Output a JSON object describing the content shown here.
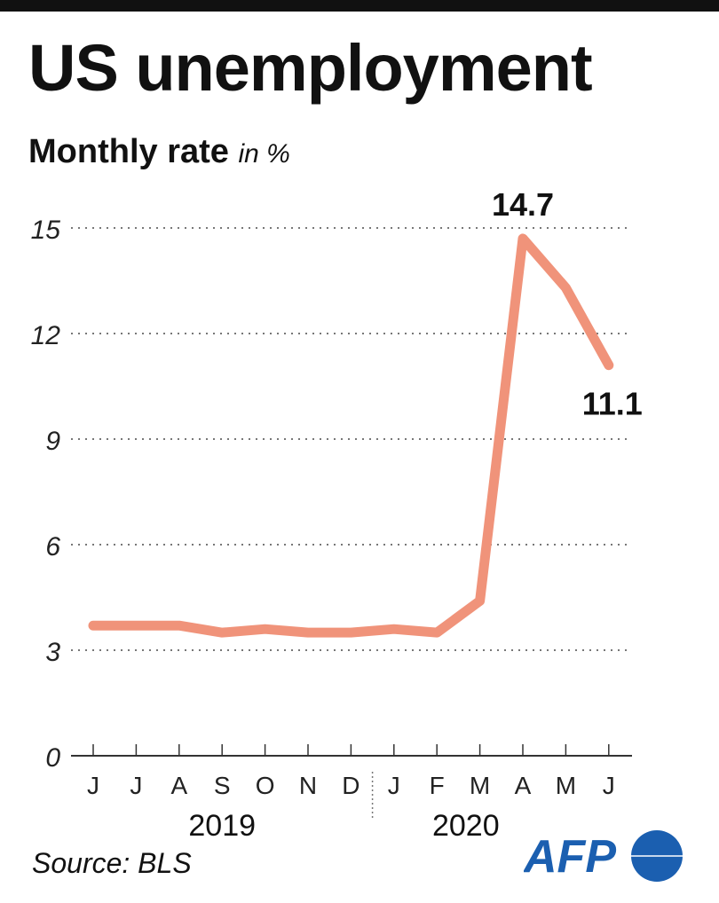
{
  "title": "US unemployment",
  "subtitle": "Monthly rate",
  "subtitle_unit": "in %",
  "source": "Source: BLS",
  "logo": "AFP",
  "colors": {
    "line": "#f0937a",
    "logo": "#1b5fb0"
  },
  "chart_data": {
    "type": "line",
    "title": "US unemployment",
    "ylabel": "Monthly rate in %",
    "xlabel": "",
    "categories": [
      "J",
      "J",
      "A",
      "S",
      "O",
      "N",
      "D",
      "J",
      "F",
      "M",
      "A",
      "M",
      "J"
    ],
    "years": [
      {
        "label": "2019",
        "from": 0,
        "to": 6
      },
      {
        "label": "2020",
        "from": 7,
        "to": 12
      }
    ],
    "series": [
      {
        "name": "Unemployment rate",
        "values": [
          3.7,
          3.7,
          3.7,
          3.5,
          3.6,
          3.5,
          3.5,
          3.6,
          3.5,
          4.4,
          14.7,
          13.3,
          11.1
        ]
      }
    ],
    "yticks": [
      0,
      3,
      6,
      9,
      12,
      15
    ],
    "ylim": [
      0,
      15
    ],
    "grid": true,
    "annotations": [
      {
        "index": 10,
        "text": "14.7"
      },
      {
        "index": 12,
        "text": "11.1"
      }
    ]
  }
}
